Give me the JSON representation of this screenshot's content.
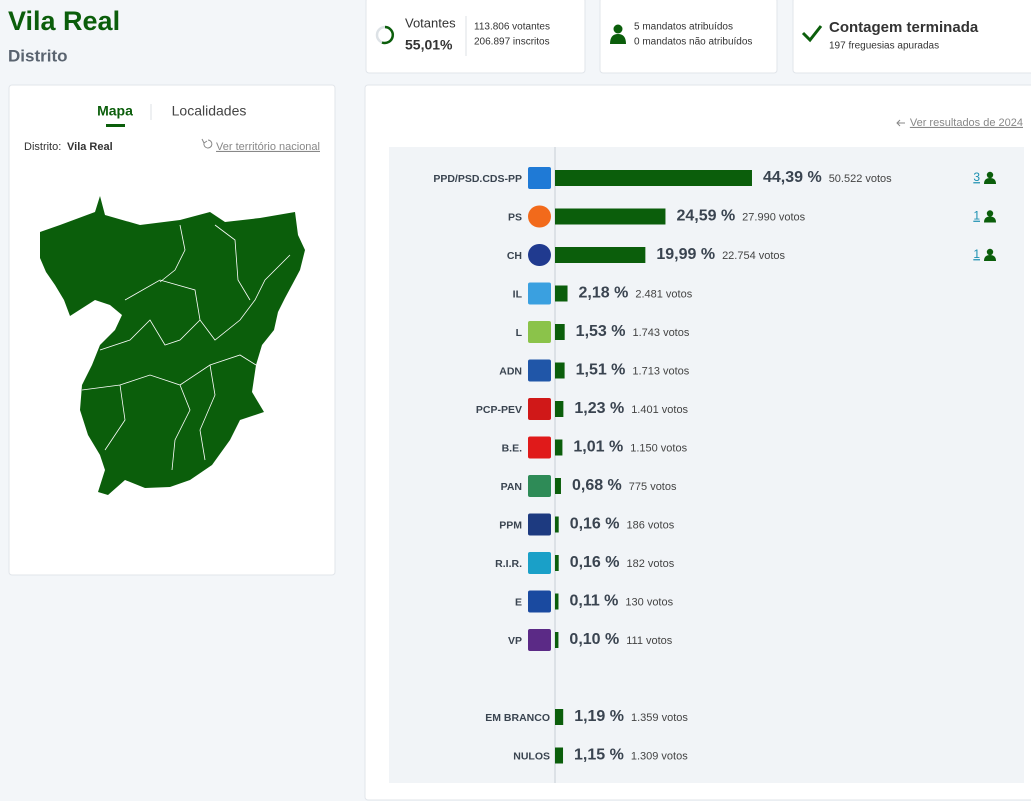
{
  "header": {
    "title": "Vila Real",
    "subtitle": "Distrito"
  },
  "stats": {
    "voters_label": "Votantes",
    "voters_pct": "55,01%",
    "voters": "113.806 votantes",
    "registered": "206.897 inscritos",
    "seats_assigned": "5 mandatos atribuídos",
    "seats_unassigned": "0 mandatos não atribuídos",
    "status": "Contagem terminada",
    "status_detail": "197 freguesias apuradas"
  },
  "map": {
    "tabs": [
      "Mapa",
      "Localidades"
    ],
    "district_label": "Distrito:",
    "district": "Vila Real",
    "national_link": "Ver território nacional"
  },
  "results": {
    "previous_link": "Ver resultados de 2024",
    "parties": [
      {
        "name": "PPD/PSD.CDS-PP",
        "percent": 44.39,
        "percent_label": "44,39 %",
        "votes": "50.522 votos",
        "seats": "3"
      },
      {
        "name": "PS",
        "percent": 24.59,
        "percent_label": "24,59 %",
        "votes": "27.990 votos",
        "seats": "1"
      },
      {
        "name": "CH",
        "percent": 19.99,
        "percent_label": "19,99 %",
        "votes": "22.754 votos",
        "seats": "1"
      },
      {
        "name": "IL",
        "percent": 2.18,
        "percent_label": "2,18 %",
        "votes": "2.481 votos"
      },
      {
        "name": "L",
        "percent": 1.53,
        "percent_label": "1,53 %",
        "votes": "1.743 votos"
      },
      {
        "name": "ADN",
        "percent": 1.51,
        "percent_label": "1,51 %",
        "votes": "1.713 votos"
      },
      {
        "name": "PCP-PEV",
        "percent": 1.23,
        "percent_label": "1,23 %",
        "votes": "1.401 votos"
      },
      {
        "name": "B.E.",
        "percent": 1.01,
        "percent_label": "1,01 %",
        "votes": "1.150 votos"
      },
      {
        "name": "PAN",
        "percent": 0.68,
        "percent_label": "0,68 %",
        "votes": "775 votos"
      },
      {
        "name": "PPM",
        "percent": 0.16,
        "percent_label": "0,16 %",
        "votes": "186 votos"
      },
      {
        "name": "R.I.R.",
        "percent": 0.16,
        "percent_label": "0,16 %",
        "votes": "182 votos"
      },
      {
        "name": "E",
        "percent": 0.11,
        "percent_label": "0,11 %",
        "votes": "130 votos"
      },
      {
        "name": "VP",
        "percent": 0.1,
        "percent_label": "0,10 %",
        "votes": "111 votos"
      }
    ],
    "others": [
      {
        "name": "EM BRANCO",
        "percent": 1.19,
        "percent_label": "1,19 %",
        "votes": "1.359 votos"
      },
      {
        "name": "NULOS",
        "percent": 1.15,
        "percent_label": "1,15 %",
        "votes": "1.309 votos"
      }
    ]
  }
}
